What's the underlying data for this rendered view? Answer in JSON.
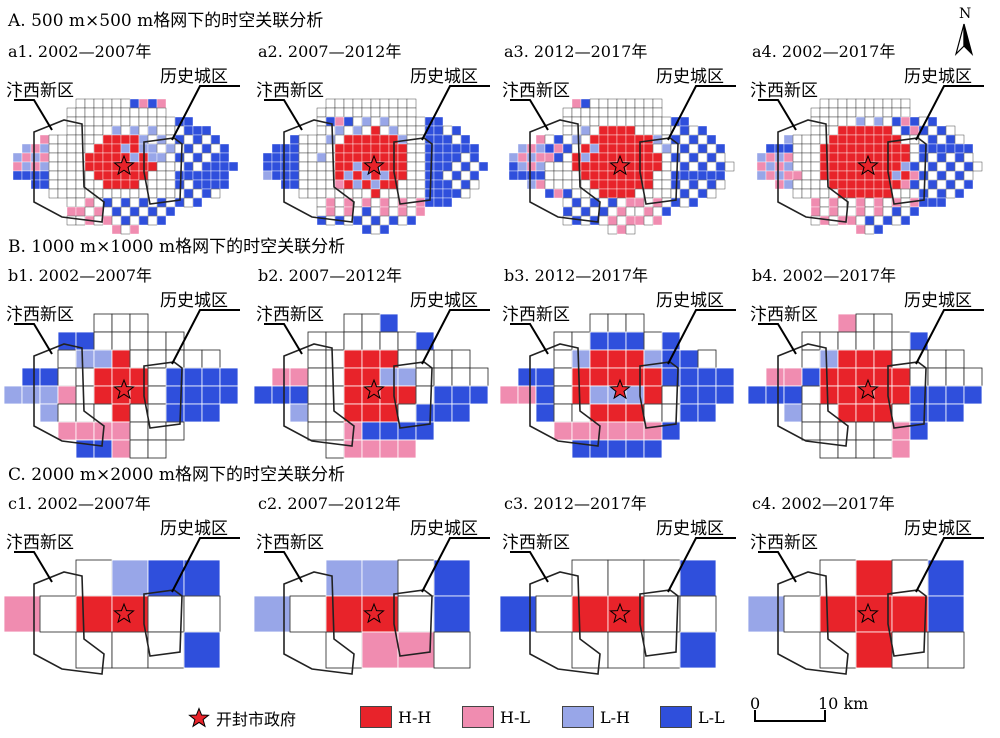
{
  "sections": [
    {
      "title": "A. 500 m×500 m格网下的时空关联分析"
    },
    {
      "title": "B. 1000 m×1000 m格网下的时空关联分析"
    },
    {
      "title": "C. 2000 m×2000 m格网下的时空关联分析"
    }
  ],
  "panels": [
    {
      "label": "a1. 2002—2007年",
      "res": 500
    },
    {
      "label": "a2. 2007—2012年",
      "res": 500
    },
    {
      "label": "a3. 2012—2017年",
      "res": 500
    },
    {
      "label": "a4. 2002—2017年",
      "res": 500
    },
    {
      "label": "b1. 2002—2007年",
      "res": 1000
    },
    {
      "label": "b2. 2007—2012年",
      "res": 1000
    },
    {
      "label": "b3. 2012—2017年",
      "res": 1000
    },
    {
      "label": "b4. 2002—2017年",
      "res": 1000
    },
    {
      "label": "c1. 2002—2007年",
      "res": 2000
    },
    {
      "label": "c2. 2007—2012年",
      "res": 2000
    },
    {
      "label": "c3. 2012—2017年",
      "res": 2000
    },
    {
      "label": "c4. 2002—2017年",
      "res": 2000
    }
  ],
  "area_labels": {
    "west": "汴西新区",
    "historic": "历史城区"
  },
  "north_arrow": "N",
  "legend": {
    "government": "开封市政府",
    "classes": [
      {
        "label": "H-H",
        "color": "#e8232a"
      },
      {
        "label": "H-L",
        "color": "#f08cb0"
      },
      {
        "label": "L-H",
        "color": "#98a6e8"
      },
      {
        "label": "L-L",
        "color": "#2f4fdc"
      }
    ]
  },
  "scale_bar": {
    "start": "0",
    "end": "10 km"
  }
}
